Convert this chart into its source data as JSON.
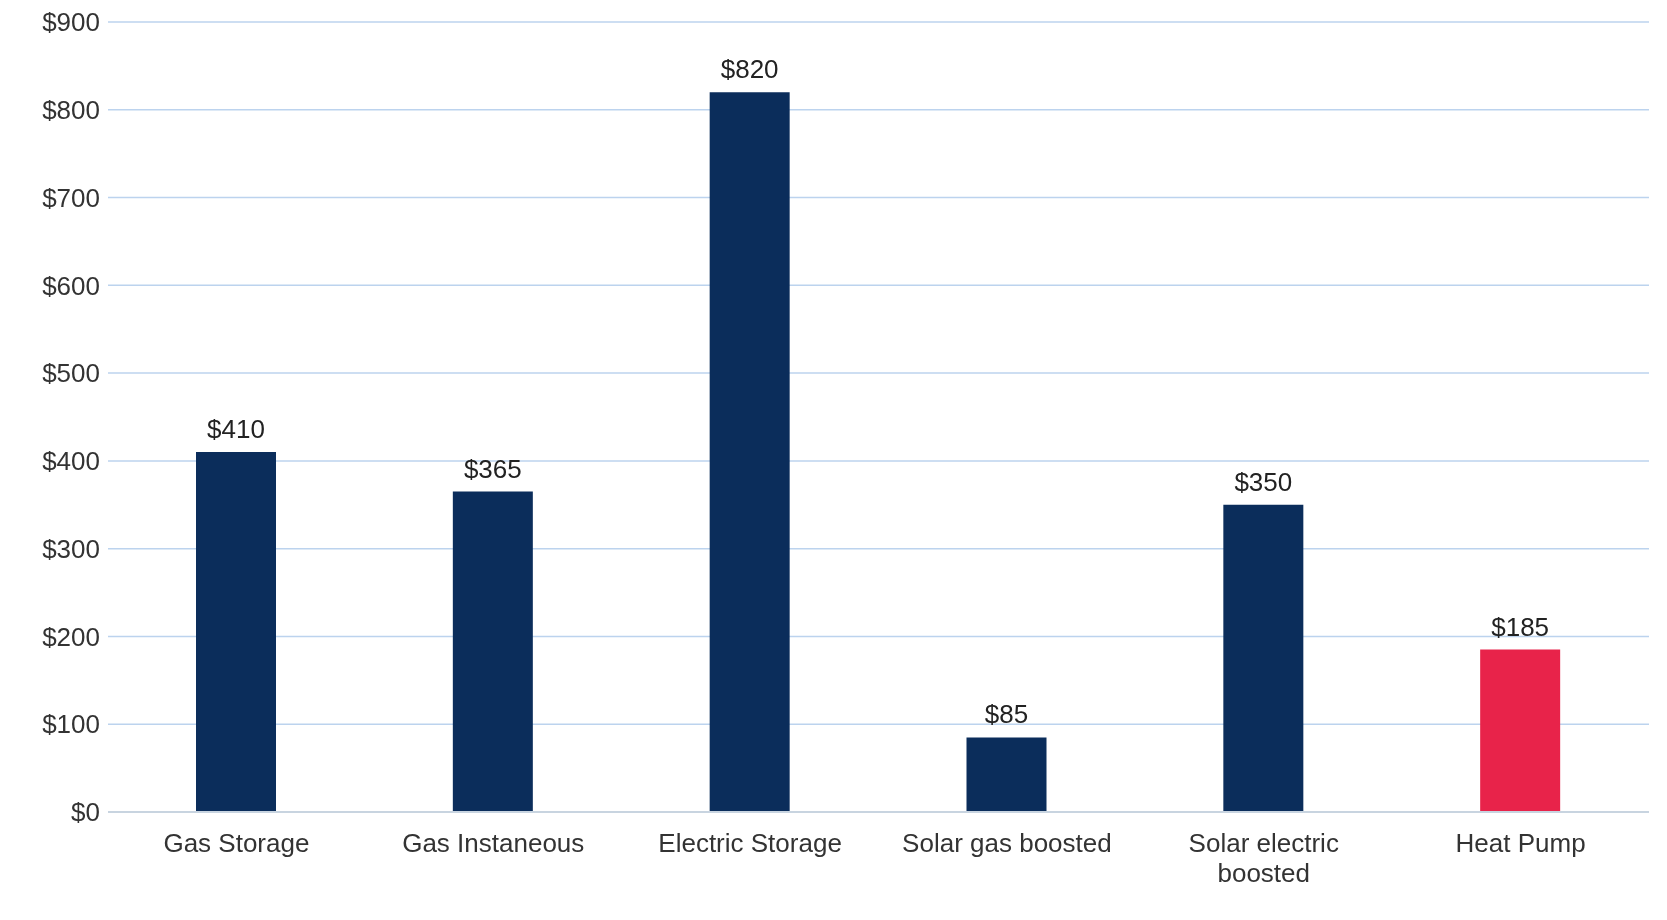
{
  "chart_data": {
    "type": "bar",
    "categories": [
      "Gas Storage",
      "Gas Instaneous",
      "Electric Storage",
      "Solar gas boosted",
      "Solar electric boosted",
      "Heat Pump"
    ],
    "values": [
      410,
      365,
      820,
      85,
      350,
      185
    ],
    "colors": [
      "#0b2d5b",
      "#0b2d5b",
      "#0b2d5b",
      "#0b2d5b",
      "#0b2d5b",
      "#e8234a"
    ],
    "value_labels": [
      "$410",
      "$365",
      "$820",
      "$85",
      "$350",
      "$185"
    ],
    "ylim": [
      0,
      900
    ],
    "yticks": [
      {
        "value": 0,
        "label": "$0"
      },
      {
        "value": 100,
        "label": "$100"
      },
      {
        "value": 200,
        "label": "$200"
      },
      {
        "value": 300,
        "label": "$300"
      },
      {
        "value": 400,
        "label": "$400"
      },
      {
        "value": 500,
        "label": "$500"
      },
      {
        "value": 600,
        "label": "$600"
      },
      {
        "value": 700,
        "label": "$700"
      },
      {
        "value": 800,
        "label": "$800"
      },
      {
        "value": 900,
        "label": "$900"
      }
    ],
    "grid": "y",
    "legend": false
  }
}
